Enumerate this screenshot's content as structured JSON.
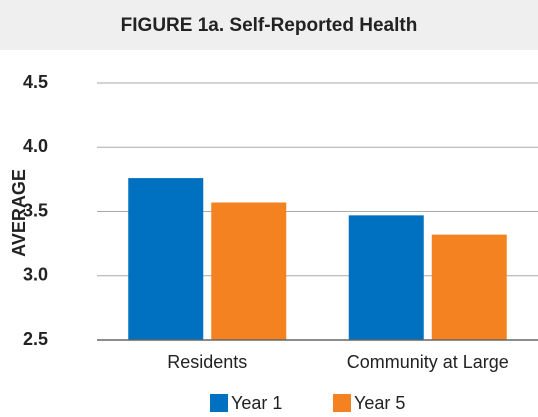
{
  "chart_data": {
    "type": "bar",
    "title": "FIGURE 1a. Self-Reported Health",
    "ylabel": "AVERAGE",
    "categories": [
      "Residents",
      "Community at Large"
    ],
    "series": [
      {
        "name": "Year 1",
        "color": "#0070c0",
        "values": [
          3.76,
          3.47
        ]
      },
      {
        "name": "Year 5",
        "color": "#f58220",
        "values": [
          3.57,
          3.32
        ]
      }
    ],
    "ylim": [
      2.5,
      4.5
    ],
    "yticks": [
      2.5,
      {
        "value": 3.0,
        "label": "3.0"
      },
      3.5,
      {
        "value": 4.0,
        "label": "4.0"
      },
      4.5
    ],
    "grid": true,
    "legend": "bottom"
  }
}
